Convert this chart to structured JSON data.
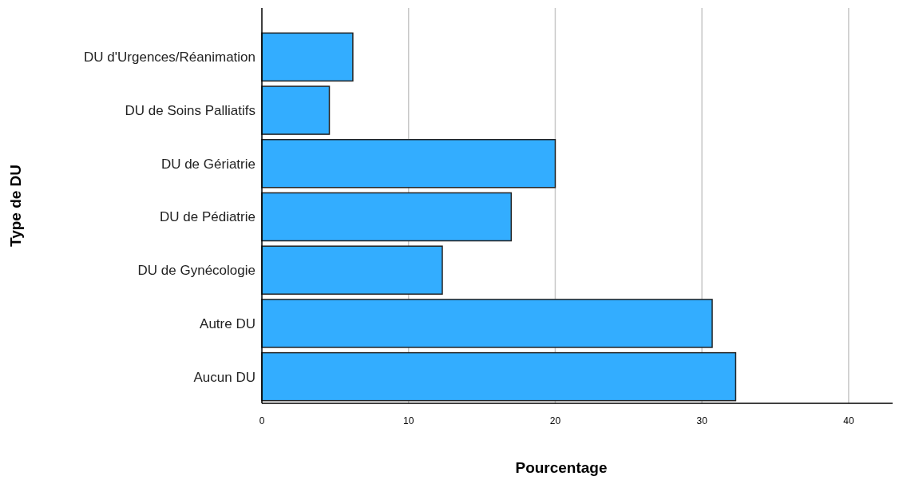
{
  "chart_data": {
    "type": "bar",
    "orientation": "horizontal",
    "xlabel": "Pourcentage",
    "ylabel": "Type de DU",
    "categories": [
      "DU d'Urgences/Réanimation",
      "DU de Soins Palliatifs",
      "DU de Gériatrie",
      "DU de Pédiatrie",
      "DU de Gynécologie",
      "Autre DU",
      "Aucun DU"
    ],
    "values": [
      6.2,
      4.6,
      20.0,
      17.0,
      12.3,
      30.7,
      32.3
    ],
    "color": "#33adff",
    "xlim": [
      0,
      43
    ],
    "xticks": [
      0,
      10,
      20,
      30,
      40
    ],
    "grid": "x"
  }
}
